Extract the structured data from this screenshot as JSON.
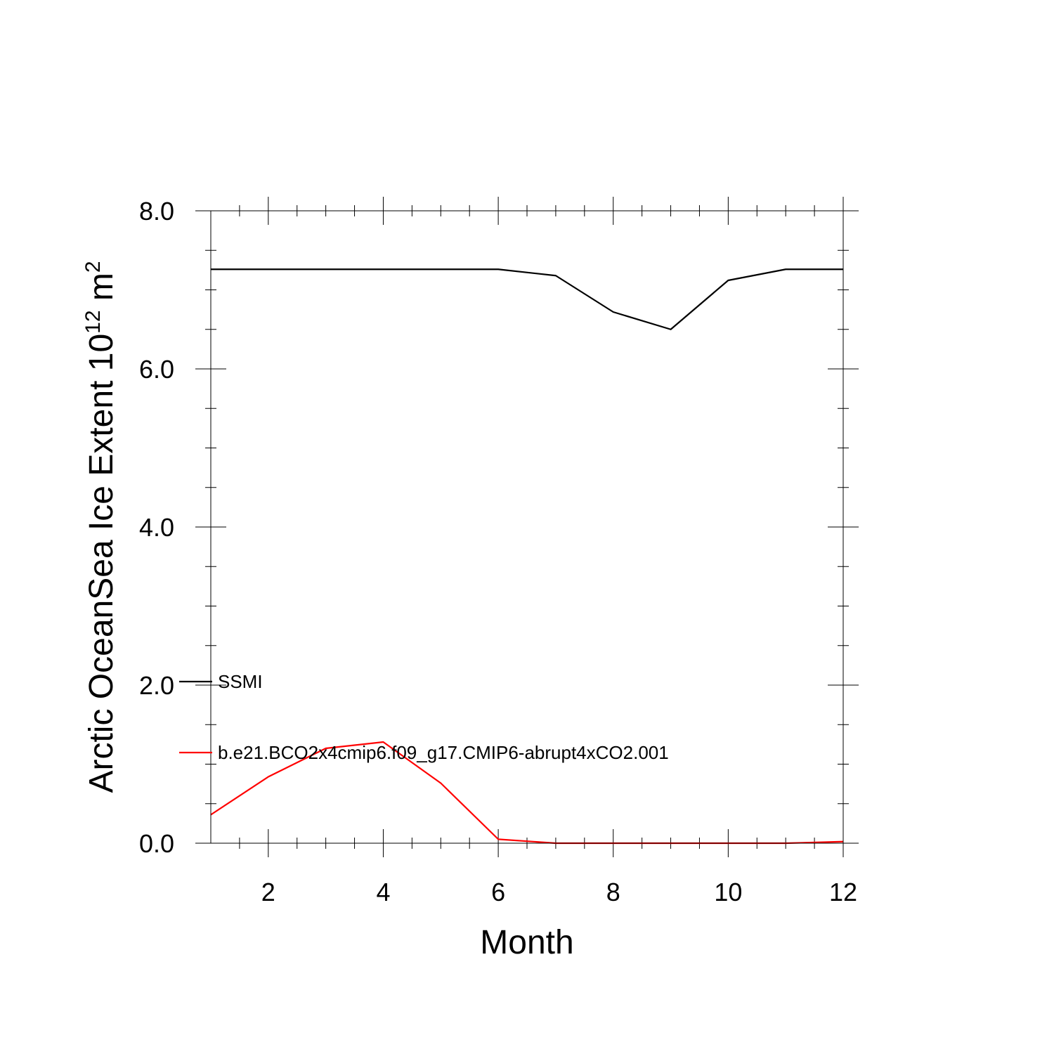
{
  "chart_data": {
    "type": "line",
    "xlabel": "Month",
    "ylabel": {
      "base": "Arctic OceanSea Ice Extent 10",
      "exponent": "12",
      "unit": " m",
      "unit_exponent": "2"
    },
    "xlim": [
      1,
      12
    ],
    "ylim": [
      0,
      8
    ],
    "xticks": [
      2,
      4,
      6,
      8,
      10,
      12
    ],
    "xtick_labels": [
      "2",
      "4",
      "6",
      "8",
      "10",
      "12"
    ],
    "yticks": [
      0,
      2,
      4,
      6,
      8
    ],
    "ytick_labels": [
      "0.0",
      "2.0",
      "4.0",
      "6.0",
      "8.0"
    ],
    "x": [
      1,
      2,
      3,
      4,
      5,
      6,
      7,
      8,
      9,
      10,
      11,
      12
    ],
    "series": [
      {
        "name": "SSMI",
        "color": "#000000",
        "values": [
          7.26,
          7.26,
          7.26,
          7.26,
          7.26,
          7.26,
          7.18,
          6.72,
          6.5,
          7.12,
          7.26,
          7.26
        ]
      },
      {
        "name": "b.e21.BCO2x4cmip6.f09_g17.CMIP6-abrupt4xCO2.001",
        "color": "#ff0000",
        "values": [
          0.36,
          0.84,
          1.2,
          1.28,
          0.76,
          0.05,
          0.0,
          0.0,
          0.0,
          0.0,
          0.0,
          0.02
        ]
      }
    ],
    "legend_position": "lower-left",
    "grid": false
  }
}
